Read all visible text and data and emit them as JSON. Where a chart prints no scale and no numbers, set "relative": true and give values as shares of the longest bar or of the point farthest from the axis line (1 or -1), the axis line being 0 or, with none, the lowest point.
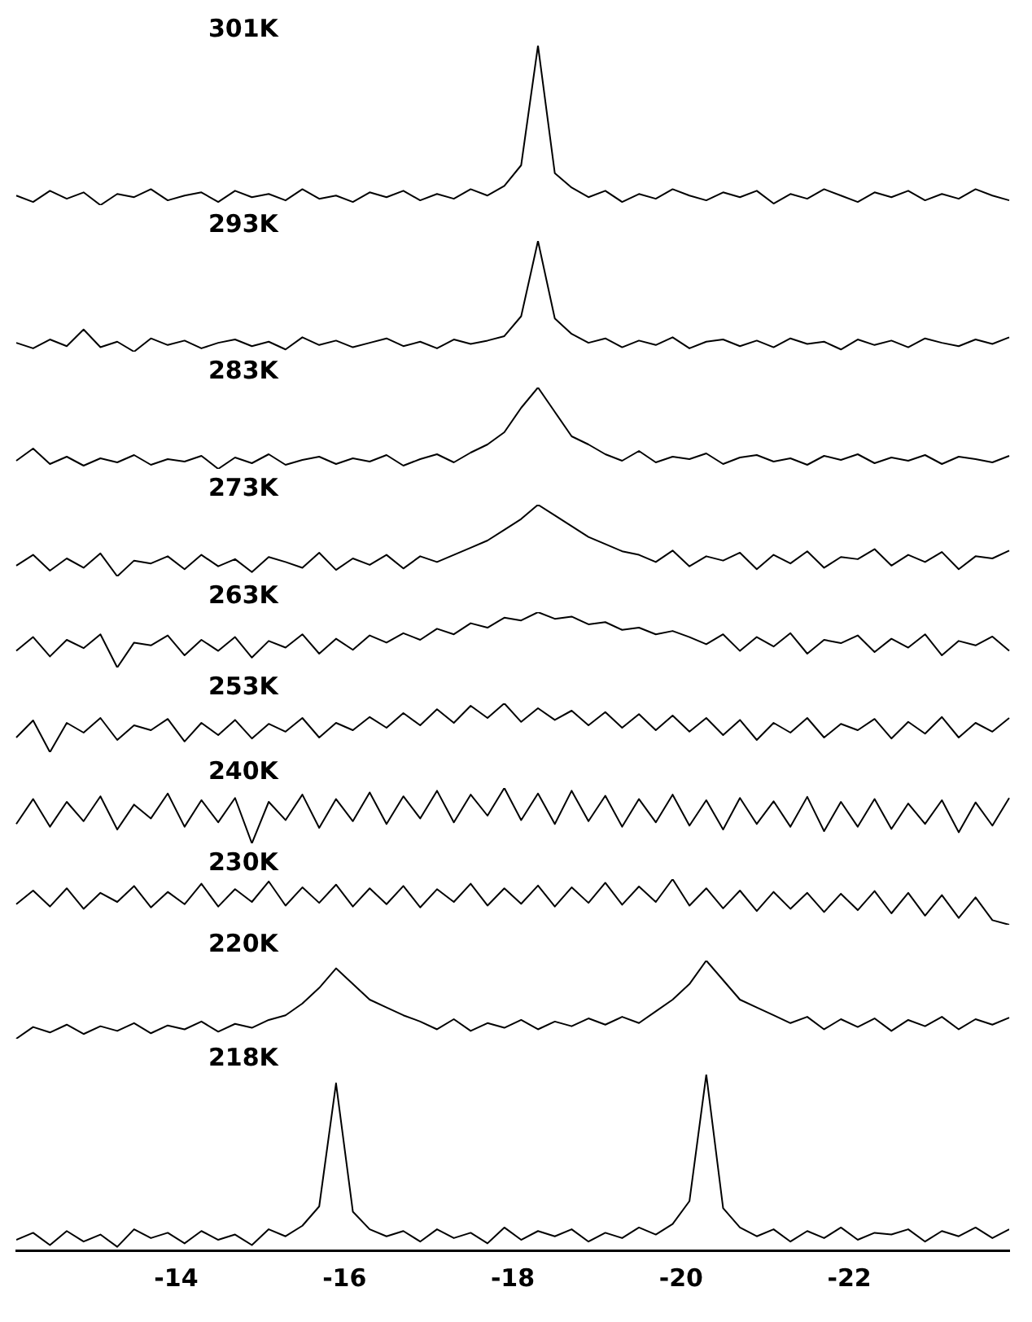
{
  "chart_data": [
    {
      "type": "line",
      "title": "301K",
      "relative": true,
      "tick_labels": false,
      "categories": [
        null,
        null,
        null,
        null,
        null,
        null,
        null,
        null,
        null,
        null,
        null,
        null,
        null,
        null,
        null,
        null,
        null,
        null,
        null,
        null,
        null,
        null,
        null,
        null,
        null,
        null,
        null,
        null,
        null,
        null,
        null,
        null,
        null,
        null,
        null,
        null,
        null,
        null,
        null,
        null,
        null,
        null,
        null,
        null,
        null,
        null,
        null,
        null,
        null,
        null,
        null,
        null,
        null,
        null,
        null,
        null,
        null,
        null,
        null,
        null
      ],
      "series": [
        {
          "color": "#000000",
          "values": [
            0.06,
            0.02,
            0.09,
            0.04,
            0.08,
            0,
            0.07,
            0.05,
            0.1,
            0.03,
            0.06,
            0.08,
            0.02,
            0.09,
            0.05,
            0.07,
            0.03,
            0.1,
            0.04,
            0.06,
            0.02,
            0.08,
            0.05,
            0.09,
            0.03,
            0.07,
            0.04,
            0.1,
            0.06,
            0.12,
            0.25,
            1,
            0.2,
            0.11,
            0.05,
            0.09,
            0.02,
            0.07,
            0.04,
            0.1,
            0.06,
            0.03,
            0.08,
            0.05,
            0.09,
            0.01,
            0.07,
            0.04,
            0.1,
            0.06,
            0.02,
            0.08,
            0.05,
            0.09,
            0.03,
            0.07,
            0.04,
            0.1,
            0.06,
            0.03
          ]
        }
      ]
    },
    {
      "type": "line",
      "title": "293K",
      "relative": true,
      "tick_labels": false,
      "categories": [
        null,
        null,
        null,
        null,
        null,
        null,
        null,
        null,
        null,
        null,
        null,
        null,
        null,
        null,
        null,
        null,
        null,
        null,
        null,
        null,
        null,
        null,
        null,
        null,
        null,
        null,
        null,
        null,
        null,
        null,
        null,
        null,
        null,
        null,
        null,
        null,
        null,
        null,
        null,
        null,
        null,
        null,
        null,
        null,
        null,
        null,
        null,
        null,
        null,
        null,
        null,
        null,
        null,
        null,
        null,
        null,
        null,
        null,
        null,
        null
      ],
      "series": [
        {
          "color": "#000000",
          "values": [
            0.08,
            0.03,
            0.11,
            0.05,
            0.2,
            0.04,
            0.09,
            0,
            0.12,
            0.06,
            0.1,
            0.03,
            0.08,
            0.11,
            0.05,
            0.09,
            0.02,
            0.13,
            0.06,
            0.1,
            0.04,
            0.08,
            0.12,
            0.05,
            0.09,
            0.03,
            0.11,
            0.07,
            0.1,
            0.14,
            0.32,
            1,
            0.3,
            0.16,
            0.08,
            0.12,
            0.04,
            0.1,
            0.06,
            0.13,
            0.03,
            0.09,
            0.11,
            0.05,
            0.1,
            0.04,
            0.12,
            0.07,
            0.09,
            0.02,
            0.11,
            0.06,
            0.1,
            0.04,
            0.12,
            0.08,
            0.05,
            0.11,
            0.07,
            0.13
          ]
        }
      ]
    },
    {
      "type": "line",
      "title": "283K",
      "relative": true,
      "tick_labels": false,
      "categories": [
        null,
        null,
        null,
        null,
        null,
        null,
        null,
        null,
        null,
        null,
        null,
        null,
        null,
        null,
        null,
        null,
        null,
        null,
        null,
        null,
        null,
        null,
        null,
        null,
        null,
        null,
        null,
        null,
        null,
        null,
        null,
        null,
        null,
        null,
        null,
        null,
        null,
        null,
        null,
        null,
        null,
        null,
        null,
        null,
        null,
        null,
        null,
        null,
        null,
        null,
        null,
        null,
        null,
        null,
        null,
        null,
        null,
        null,
        null,
        null
      ],
      "series": [
        {
          "color": "#000000",
          "values": [
            0.1,
            0.25,
            0.06,
            0.15,
            0.04,
            0.13,
            0.08,
            0.17,
            0.05,
            0.12,
            0.09,
            0.16,
            0,
            0.14,
            0.07,
            0.18,
            0.05,
            0.11,
            0.15,
            0.06,
            0.13,
            0.09,
            0.17,
            0.04,
            0.12,
            0.18,
            0.08,
            0.2,
            0.3,
            0.45,
            0.75,
            1,
            0.7,
            0.4,
            0.3,
            0.18,
            0.1,
            0.22,
            0.08,
            0.15,
            0.12,
            0.19,
            0.06,
            0.14,
            0.17,
            0.09,
            0.13,
            0.05,
            0.16,
            0.11,
            0.18,
            0.07,
            0.14,
            0.1,
            0.17,
            0.06,
            0.15,
            0.12,
            0.08,
            0.16
          ]
        }
      ]
    },
    {
      "type": "line",
      "title": "273K",
      "relative": true,
      "tick_labels": false,
      "categories": [
        null,
        null,
        null,
        null,
        null,
        null,
        null,
        null,
        null,
        null,
        null,
        null,
        null,
        null,
        null,
        null,
        null,
        null,
        null,
        null,
        null,
        null,
        null,
        null,
        null,
        null,
        null,
        null,
        null,
        null,
        null,
        null,
        null,
        null,
        null,
        null,
        null,
        null,
        null,
        null,
        null,
        null,
        null,
        null,
        null,
        null,
        null,
        null,
        null,
        null,
        null,
        null,
        null,
        null,
        null,
        null,
        null,
        null,
        null,
        null
      ],
      "series": [
        {
          "color": "#000000",
          "values": [
            0.15,
            0.3,
            0.08,
            0.25,
            0.12,
            0.32,
            0,
            0.22,
            0.18,
            0.28,
            0.1,
            0.3,
            0.14,
            0.24,
            0.06,
            0.27,
            0.2,
            0.12,
            0.33,
            0.09,
            0.25,
            0.16,
            0.3,
            0.11,
            0.28,
            0.2,
            0.3,
            0.4,
            0.5,
            0.65,
            0.8,
            1,
            0.85,
            0.7,
            0.55,
            0.45,
            0.35,
            0.3,
            0.2,
            0.36,
            0.14,
            0.28,
            0.22,
            0.33,
            0.1,
            0.3,
            0.18,
            0.35,
            0.12,
            0.27,
            0.24,
            0.38,
            0.15,
            0.3,
            0.2,
            0.34,
            0.1,
            0.28,
            0.25,
            0.36
          ]
        }
      ]
    },
    {
      "type": "line",
      "title": "263K",
      "relative": true,
      "tick_labels": false,
      "categories": [
        null,
        null,
        null,
        null,
        null,
        null,
        null,
        null,
        null,
        null,
        null,
        null,
        null,
        null,
        null,
        null,
        null,
        null,
        null,
        null,
        null,
        null,
        null,
        null,
        null,
        null,
        null,
        null,
        null,
        null,
        null,
        null,
        null,
        null,
        null,
        null,
        null,
        null,
        null,
        null,
        null,
        null,
        null,
        null,
        null,
        null,
        null,
        null,
        null,
        null,
        null,
        null,
        null,
        null,
        null,
        null,
        null,
        null,
        null,
        null
      ],
      "series": [
        {
          "color": "#000000",
          "values": [
            0.3,
            0.55,
            0.2,
            0.5,
            0.35,
            0.6,
            0,
            0.45,
            0.4,
            0.58,
            0.22,
            0.5,
            0.3,
            0.55,
            0.18,
            0.48,
            0.36,
            0.6,
            0.25,
            0.52,
            0.32,
            0.58,
            0.45,
            0.62,
            0.5,
            0.7,
            0.6,
            0.8,
            0.72,
            0.9,
            0.85,
            1,
            0.88,
            0.92,
            0.78,
            0.82,
            0.68,
            0.72,
            0.6,
            0.66,
            0.55,
            0.42,
            0.6,
            0.3,
            0.55,
            0.38,
            0.62,
            0.25,
            0.5,
            0.44,
            0.58,
            0.28,
            0.52,
            0.36,
            0.6,
            0.22,
            0.48,
            0.4,
            0.56,
            0.3
          ]
        }
      ]
    },
    {
      "type": "line",
      "title": "253K",
      "relative": true,
      "tick_labels": false,
      "categories": [
        null,
        null,
        null,
        null,
        null,
        null,
        null,
        null,
        null,
        null,
        null,
        null,
        null,
        null,
        null,
        null,
        null,
        null,
        null,
        null,
        null,
        null,
        null,
        null,
        null,
        null,
        null,
        null,
        null,
        null,
        null,
        null,
        null,
        null,
        null,
        null,
        null,
        null,
        null,
        null,
        null,
        null,
        null,
        null,
        null,
        null,
        null,
        null,
        null,
        null,
        null,
        null,
        null,
        null,
        null,
        null,
        null,
        null,
        null,
        null
      ],
      "series": [
        {
          "color": "#000000",
          "values": [
            0.3,
            0.65,
            0,
            0.6,
            0.4,
            0.7,
            0.25,
            0.55,
            0.45,
            0.68,
            0.22,
            0.6,
            0.35,
            0.66,
            0.28,
            0.58,
            0.42,
            0.7,
            0.3,
            0.6,
            0.45,
            0.72,
            0.5,
            0.8,
            0.55,
            0.88,
            0.6,
            0.95,
            0.7,
            1,
            0.62,
            0.9,
            0.66,
            0.85,
            0.55,
            0.82,
            0.5,
            0.78,
            0.45,
            0.75,
            0.42,
            0.7,
            0.35,
            0.66,
            0.25,
            0.6,
            0.4,
            0.7,
            0.3,
            0.58,
            0.45,
            0.68,
            0.28,
            0.62,
            0.38,
            0.72,
            0.3,
            0.6,
            0.42,
            0.7
          ]
        }
      ]
    },
    {
      "type": "line",
      "title": "240K",
      "relative": true,
      "tick_labels": false,
      "categories": [
        null,
        null,
        null,
        null,
        null,
        null,
        null,
        null,
        null,
        null,
        null,
        null,
        null,
        null,
        null,
        null,
        null,
        null,
        null,
        null,
        null,
        null,
        null,
        null,
        null,
        null,
        null,
        null,
        null,
        null,
        null,
        null,
        null,
        null,
        null,
        null,
        null,
        null,
        null,
        null,
        null,
        null,
        null,
        null,
        null,
        null,
        null,
        null,
        null,
        null,
        null,
        null,
        null,
        null,
        null,
        null,
        null,
        null,
        null,
        null
      ],
      "series": [
        {
          "color": "#000000",
          "values": [
            0.35,
            0.8,
            0.3,
            0.75,
            0.4,
            0.85,
            0.25,
            0.7,
            0.45,
            0.9,
            0.3,
            0.78,
            0.38,
            0.82,
            0,
            0.75,
            0.42,
            0.88,
            0.28,
            0.8,
            0.4,
            0.92,
            0.35,
            0.85,
            0.45,
            0.95,
            0.38,
            0.88,
            0.5,
            1,
            0.42,
            0.9,
            0.35,
            0.95,
            0.4,
            0.86,
            0.3,
            0.8,
            0.38,
            0.88,
            0.32,
            0.78,
            0.25,
            0.82,
            0.35,
            0.76,
            0.3,
            0.84,
            0.22,
            0.75,
            0.3,
            0.8,
            0.26,
            0.72,
            0.35,
            0.78,
            0.2,
            0.74,
            0.32,
            0.82
          ]
        }
      ]
    },
    {
      "type": "line",
      "title": "230K",
      "relative": true,
      "tick_labels": false,
      "categories": [
        null,
        null,
        null,
        null,
        null,
        null,
        null,
        null,
        null,
        null,
        null,
        null,
        null,
        null,
        null,
        null,
        null,
        null,
        null,
        null,
        null,
        null,
        null,
        null,
        null,
        null,
        null,
        null,
        null,
        null,
        null,
        null,
        null,
        null,
        null,
        null,
        null,
        null,
        null,
        null,
        null,
        null,
        null,
        null,
        null,
        null,
        null,
        null,
        null,
        null,
        null,
        null,
        null,
        null,
        null,
        null,
        null,
        null,
        null,
        null
      ],
      "series": [
        {
          "color": "#000000",
          "values": [
            0.45,
            0.75,
            0.4,
            0.8,
            0.35,
            0.7,
            0.5,
            0.85,
            0.38,
            0.72,
            0.45,
            0.9,
            0.4,
            0.78,
            0.5,
            0.95,
            0.42,
            0.82,
            0.48,
            0.88,
            0.4,
            0.8,
            0.45,
            0.85,
            0.38,
            0.78,
            0.5,
            0.9,
            0.42,
            0.8,
            0.46,
            0.86,
            0.4,
            0.82,
            0.48,
            0.92,
            0.44,
            0.84,
            0.5,
            1,
            0.42,
            0.8,
            0.36,
            0.75,
            0.3,
            0.72,
            0.35,
            0.7,
            0.28,
            0.68,
            0.32,
            0.74,
            0.25,
            0.7,
            0.2,
            0.65,
            0.15,
            0.6,
            0.1,
            0
          ]
        }
      ]
    },
    {
      "type": "line",
      "title": "220K",
      "relative": true,
      "tick_labels": false,
      "categories": [
        null,
        null,
        null,
        null,
        null,
        null,
        null,
        null,
        null,
        null,
        null,
        null,
        null,
        null,
        null,
        null,
        null,
        null,
        null,
        null,
        null,
        null,
        null,
        null,
        null,
        null,
        null,
        null,
        null,
        null,
        null,
        null,
        null,
        null,
        null,
        null,
        null,
        null,
        null,
        null,
        null,
        null,
        null,
        null,
        null,
        null,
        null,
        null,
        null,
        null,
        null,
        null,
        null,
        null,
        null,
        null,
        null,
        null,
        null,
        null
      ],
      "series": [
        {
          "color": "#000000",
          "values": [
            0,
            0.15,
            0.08,
            0.18,
            0.06,
            0.16,
            0.1,
            0.2,
            0.07,
            0.17,
            0.12,
            0.22,
            0.09,
            0.19,
            0.14,
            0.24,
            0.3,
            0.45,
            0.65,
            0.9,
            0.7,
            0.5,
            0.4,
            0.3,
            0.22,
            0.12,
            0.25,
            0.1,
            0.2,
            0.14,
            0.24,
            0.12,
            0.22,
            0.16,
            0.26,
            0.18,
            0.28,
            0.2,
            0.35,
            0.5,
            0.7,
            1,
            0.75,
            0.5,
            0.4,
            0.3,
            0.2,
            0.28,
            0.12,
            0.25,
            0.15,
            0.26,
            0.1,
            0.24,
            0.16,
            0.28,
            0.12,
            0.25,
            0.18,
            0.27
          ]
        }
      ]
    },
    {
      "type": "line",
      "title": "218K",
      "relative": true,
      "tick_labels": "x",
      "xlim": [
        -12.1,
        -23.9
      ],
      "xticks": [
        -14,
        -16,
        -18,
        -20,
        -22
      ],
      "x": [
        -12.1,
        -12.3,
        -12.5,
        -12.7,
        -12.9,
        -13.1,
        -13.3,
        -13.5,
        -13.7,
        -13.9,
        -14.1,
        -14.3,
        -14.5,
        -14.7,
        -14.9,
        -15.1,
        -15.3,
        -15.5,
        -15.7,
        -15.9,
        -16.1,
        -16.3,
        -16.5,
        -16.7,
        -16.9,
        -17.1,
        -17.3,
        -17.5,
        -17.7,
        -17.9,
        -18.1,
        -18.3,
        -18.5,
        -18.7,
        -18.9,
        -19.1,
        -19.3,
        -19.5,
        -19.7,
        -19.9,
        -20.1,
        -20.3,
        -20.5,
        -20.7,
        -20.9,
        -21.1,
        -21.3,
        -21.5,
        -21.7,
        -21.9,
        -22.1,
        -22.3,
        -22.5,
        -22.7,
        -22.9,
        -23.1,
        -23.3,
        -23.5,
        -23.7,
        -23.9
      ],
      "series": [
        {
          "color": "#000000",
          "values": [
            0.06,
            0.1,
            0.03,
            0.11,
            0.05,
            0.09,
            0.02,
            0.12,
            0.07,
            0.1,
            0.04,
            0.11,
            0.06,
            0.09,
            0.03,
            0.12,
            0.08,
            0.14,
            0.25,
            0.95,
            0.22,
            0.12,
            0.08,
            0.11,
            0.05,
            0.12,
            0.07,
            0.1,
            0.04,
            0.13,
            0.06,
            0.11,
            0.08,
            0.12,
            0.05,
            0.1,
            0.07,
            0.13,
            0.09,
            0.15,
            0.28,
            1,
            0.24,
            0.13,
            0.08,
            0.12,
            0.05,
            0.11,
            0.07,
            0.13,
            0.06,
            0.1,
            0.09,
            0.12,
            0.05,
            0.11,
            0.08,
            0.13,
            0.07,
            0.12
          ]
        }
      ]
    }
  ]
}
